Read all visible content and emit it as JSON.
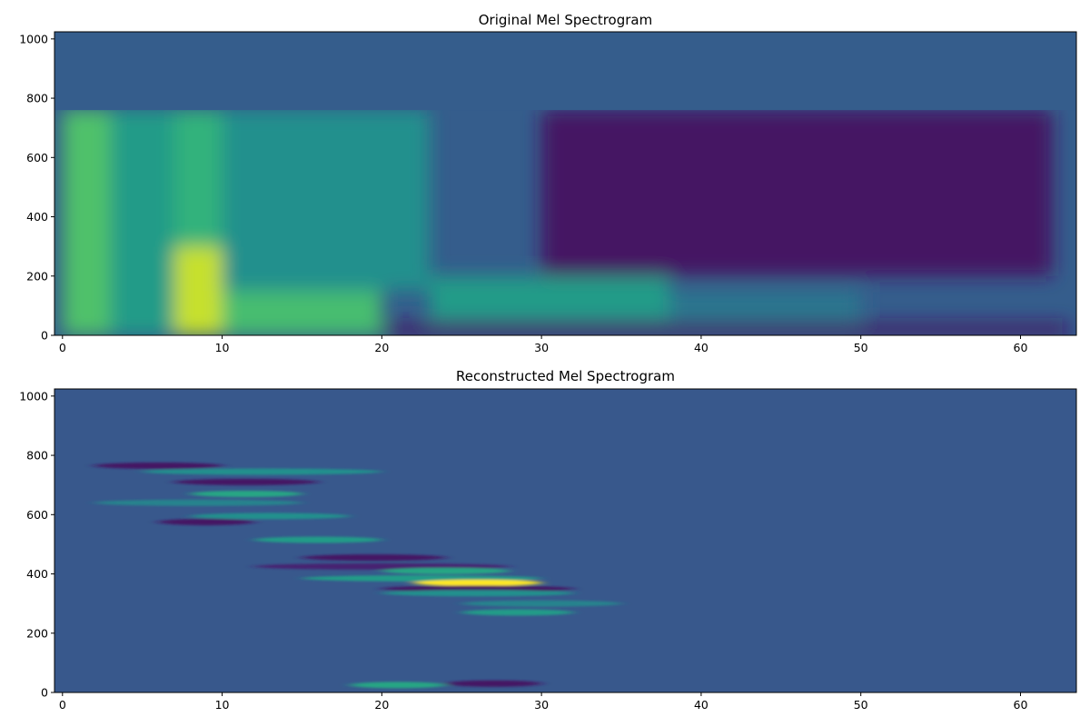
{
  "chart_data": [
    {
      "type": "heatmap",
      "title": "Original Mel Spectrogram",
      "xlabel": "",
      "ylabel": "",
      "xlim": [
        -0.5,
        63.5
      ],
      "ylim": [
        0,
        1024
      ],
      "xticks": [
        0,
        10,
        20,
        30,
        40,
        50,
        60
      ],
      "xtick_labels": [
        "0",
        "10",
        "20",
        "30",
        "40",
        "50",
        "60"
      ],
      "yticks": [
        0,
        200,
        400,
        600,
        800,
        1000
      ],
      "ytick_labels": [
        "0",
        "200",
        "400",
        "600",
        "800",
        "1000"
      ],
      "colormap": "viridis",
      "grid": false,
      "value_range": [
        0,
        1
      ],
      "fill_value": 0.3,
      "fill_region": {
        "y_from": 760,
        "y_to": 1024
      },
      "regions": [
        {
          "x": [
            0,
            3
          ],
          "y": [
            0,
            760
          ],
          "value": 0.72
        },
        {
          "x": [
            3,
            7
          ],
          "y": [
            0,
            760
          ],
          "value": 0.55
        },
        {
          "x": [
            7,
            10
          ],
          "y": [
            0,
            300
          ],
          "value": 0.92
        },
        {
          "x": [
            7,
            10
          ],
          "y": [
            300,
            760
          ],
          "value": 0.65
        },
        {
          "x": [
            10,
            20
          ],
          "y": [
            0,
            150
          ],
          "value": 0.7
        },
        {
          "x": [
            10,
            23
          ],
          "y": [
            150,
            760
          ],
          "value": 0.5
        },
        {
          "x": [
            23,
            38
          ],
          "y": [
            50,
            200
          ],
          "value": 0.55
        },
        {
          "x": [
            38,
            50
          ],
          "y": [
            40,
            150
          ],
          "value": 0.4
        },
        {
          "x": [
            30,
            62
          ],
          "y": [
            200,
            760
          ],
          "value": 0.05
        },
        {
          "x": [
            20,
            63
          ],
          "y": [
            0,
            40
          ],
          "value": 0.05
        }
      ]
    },
    {
      "type": "heatmap",
      "title": "Reconstructed Mel Spectrogram",
      "xlabel": "",
      "ylabel": "",
      "xlim": [
        -0.5,
        63.5
      ],
      "ylim": [
        0,
        1024
      ],
      "xticks": [
        0,
        10,
        20,
        30,
        40,
        50,
        60
      ],
      "xtick_labels": [
        "0",
        "10",
        "20",
        "30",
        "40",
        "50",
        "60"
      ],
      "yticks": [
        0,
        200,
        400,
        600,
        800,
        1000
      ],
      "ytick_labels": [
        "0",
        "200",
        "400",
        "600",
        "800",
        "1000"
      ],
      "colormap": "viridis",
      "grid": false,
      "value_range": [
        0,
        1
      ],
      "fill_value": 0.28,
      "streaks": [
        {
          "x": [
            2,
            10
          ],
          "y": 765,
          "value": 0.05
        },
        {
          "x": [
            5,
            20
          ],
          "y": 745,
          "value": 0.5
        },
        {
          "x": [
            7,
            16
          ],
          "y": 710,
          "value": 0.05
        },
        {
          "x": [
            8,
            15
          ],
          "y": 670,
          "value": 0.6
        },
        {
          "x": [
            2,
            15
          ],
          "y": 640,
          "value": 0.45
        },
        {
          "x": [
            8,
            18
          ],
          "y": 595,
          "value": 0.5
        },
        {
          "x": [
            6,
            12
          ],
          "y": 575,
          "value": 0.05
        },
        {
          "x": [
            12,
            20
          ],
          "y": 515,
          "value": 0.55
        },
        {
          "x": [
            15,
            24
          ],
          "y": 455,
          "value": 0.05
        },
        {
          "x": [
            12,
            28
          ],
          "y": 425,
          "value": 0.1
        },
        {
          "x": [
            20,
            28
          ],
          "y": 410,
          "value": 0.6
        },
        {
          "x": [
            15,
            30
          ],
          "y": 385,
          "value": 0.55
        },
        {
          "x": [
            22,
            30
          ],
          "y": 370,
          "value": 1.0
        },
        {
          "x": [
            20,
            32
          ],
          "y": 350,
          "value": 0.05
        },
        {
          "x": [
            20,
            32
          ],
          "y": 335,
          "value": 0.5
        },
        {
          "x": [
            25,
            35
          ],
          "y": 300,
          "value": 0.45
        },
        {
          "x": [
            25,
            32
          ],
          "y": 270,
          "value": 0.55
        },
        {
          "x": [
            18,
            24
          ],
          "y": 25,
          "value": 0.6
        },
        {
          "x": [
            24,
            30
          ],
          "y": 30,
          "value": 0.05
        }
      ]
    }
  ]
}
